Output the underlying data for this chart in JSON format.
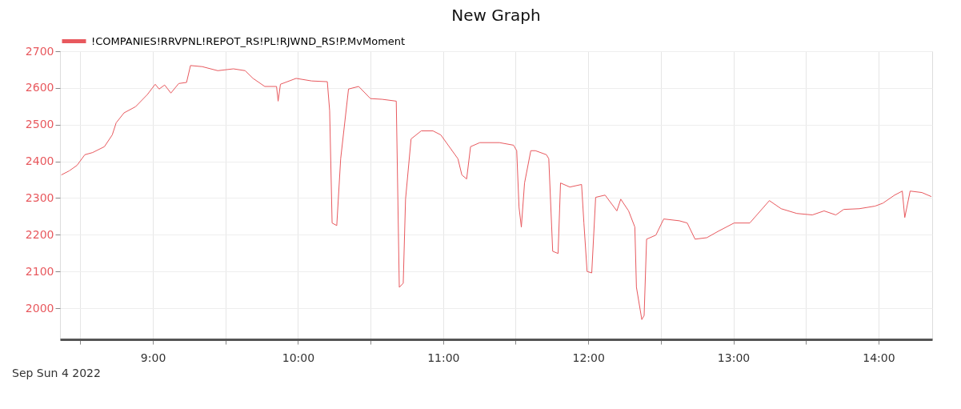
{
  "chart_data": {
    "type": "line",
    "title": "New Graph",
    "x": [
      8.369,
      8.423,
      8.477,
      8.531,
      8.585,
      8.666,
      8.72,
      8.747,
      8.801,
      8.881,
      8.962,
      9.016,
      9.043,
      9.081,
      9.124,
      9.178,
      9.232,
      9.259,
      9.34,
      9.447,
      9.555,
      9.636,
      9.69,
      9.771,
      9.852,
      9.863,
      9.879,
      9.987,
      10.094,
      10.202,
      10.218,
      10.235,
      10.267,
      10.294,
      10.348,
      10.418,
      10.499,
      10.58,
      10.677,
      10.698,
      10.725,
      10.741,
      10.779,
      10.849,
      10.93,
      10.984,
      11.102,
      11.129,
      11.162,
      11.189,
      11.253,
      11.388,
      11.485,
      11.507,
      11.523,
      11.539,
      11.561,
      11.604,
      11.636,
      11.712,
      11.728,
      11.755,
      11.792,
      11.809,
      11.873,
      11.954,
      11.97,
      11.992,
      12.024,
      12.051,
      12.116,
      12.197,
      12.224,
      12.278,
      12.321,
      12.332,
      12.369,
      12.385,
      12.402,
      12.466,
      12.52,
      12.628,
      12.682,
      12.736,
      12.817,
      12.898,
      13.005,
      13.113,
      13.248,
      13.329,
      13.437,
      13.544,
      13.625,
      13.706,
      13.76,
      13.868,
      13.976,
      14.03,
      14.111,
      14.164,
      14.181,
      14.218,
      14.299,
      14.364
    ],
    "series": [
      {
        "name": "!COMPANIES!RRVPNL!REPOT_RS!PL!RJWND_RS!P.MvMoment",
        "color": "#e8595e",
        "values": [
          2363,
          2374,
          2389,
          2418,
          2424,
          2440,
          2472,
          2505,
          2532,
          2549,
          2582,
          2610,
          2597,
          2608,
          2586,
          2612,
          2615,
          2661,
          2658,
          2647,
          2652,
          2647,
          2626,
          2604,
          2604,
          2564,
          2610,
          2626,
          2619,
          2617,
          2538,
          2232,
          2225,
          2407,
          2597,
          2604,
          2571,
          2569,
          2564,
          2057,
          2068,
          2297,
          2461,
          2483,
          2483,
          2472,
          2407,
          2363,
          2352,
          2440,
          2451,
          2451,
          2444,
          2429,
          2275,
          2221,
          2341,
          2429,
          2429,
          2418,
          2407,
          2155,
          2149,
          2341,
          2330,
          2337,
          2232,
          2100,
          2096,
          2302,
          2308,
          2265,
          2297,
          2265,
          2221,
          2057,
          1969,
          1980,
          2188,
          2199,
          2243,
          2238,
          2232,
          2188,
          2192,
          2210,
          2232,
          2232,
          2293,
          2271,
          2258,
          2254,
          2265,
          2254,
          2269,
          2271,
          2278,
          2286,
          2308,
          2319,
          2247,
          2319,
          2315,
          2304
        ]
      }
    ],
    "xlim": [
      8.36,
      14.37
    ],
    "xticks": [
      {
        "value": 8.5,
        "label": null
      },
      {
        "value": 9,
        "label": "9:00"
      },
      {
        "value": 9.5,
        "label": null
      },
      {
        "value": 10,
        "label": "10:00"
      },
      {
        "value": 10.5,
        "label": null
      },
      {
        "value": 11,
        "label": "11:00"
      },
      {
        "value": 11.5,
        "label": null
      },
      {
        "value": 12,
        "label": "12:00"
      },
      {
        "value": 12.5,
        "label": null
      },
      {
        "value": 13,
        "label": "13:00"
      },
      {
        "value": 13.5,
        "label": null
      },
      {
        "value": 14,
        "label": "14:00"
      }
    ],
    "ylim": [
      1915,
      2700
    ],
    "yticks": [
      2000,
      2100,
      2200,
      2300,
      2400,
      2500,
      2600,
      2700
    ],
    "grid": true,
    "legend": "top left",
    "marker": "none",
    "line_style": "solid",
    "annotations": [
      "Sep Sun 4 2022"
    ]
  }
}
